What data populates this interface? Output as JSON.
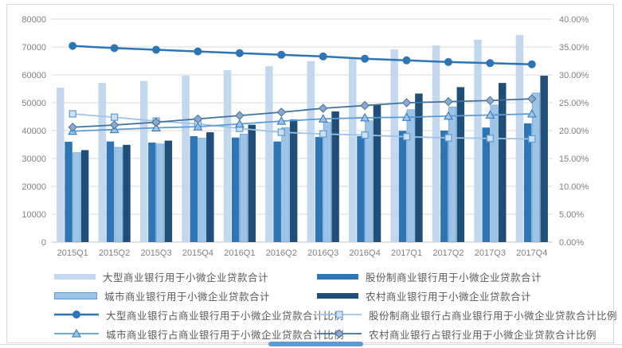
{
  "chart_data": {
    "type": "bar+line combo",
    "title": "",
    "xlabel": "",
    "ylabel_left": "",
    "ylabel_right": "",
    "grid": true,
    "legend_position": "bottom-two-columns",
    "categories": [
      "2015Q1",
      "2015Q2",
      "2015Q3",
      "2015Q4",
      "2016Q1",
      "2016Q2",
      "2016Q3",
      "2016Q4",
      "2017Q1",
      "2017Q2",
      "2017Q3",
      "2017Q4"
    ],
    "left_axis": {
      "min": 0,
      "max": 80000,
      "step": 10000,
      "tick_labels": [
        "0",
        "10000",
        "20000",
        "30000",
        "40000",
        "50000",
        "60000",
        "70000",
        "80000"
      ]
    },
    "right_axis": {
      "min": 0,
      "max": 40,
      "step": 5,
      "tick_labels": [
        "0.00%",
        "5.00%",
        "10.00%",
        "15.00%",
        "20.00%",
        "25.00%",
        "30.00%",
        "35.00%",
        "40.00%"
      ]
    },
    "bar_series": [
      {
        "name": "大型商业银行用于小微企业贷款合计",
        "color": "#c3d8ee",
        "axis": "left",
        "values": [
          55400,
          57100,
          57800,
          59700,
          61700,
          63100,
          64900,
          66300,
          69100,
          70600,
          72600,
          74300
        ]
      },
      {
        "name": "股份制商业银行用于小微企业贷款合计",
        "color": "#2e75b6",
        "axis": "left",
        "values": [
          36000,
          36100,
          35700,
          38000,
          37500,
          36100,
          37700,
          38000,
          39900,
          40000,
          41100,
          42600
        ]
      },
      {
        "name": "城市商业银行用于小微企业贷款合计",
        "color": "#9dc3e6",
        "border": "#5b9bd5",
        "axis": "left",
        "values": [
          32100,
          34000,
          35200,
          37300,
          38800,
          41100,
          43000,
          43500,
          47500,
          48500,
          49200,
          53500
        ]
      },
      {
        "name": "农村商业银行用于小微企业贷款合计",
        "color": "#1f4e79",
        "axis": "left",
        "values": [
          33000,
          34900,
          36400,
          39400,
          42100,
          44000,
          46900,
          49200,
          53300,
          55600,
          57100,
          59700
        ]
      }
    ],
    "line_series": [
      {
        "name": "大型商业银行占商业银行用于小微企业贷款合计比例",
        "marker": "circle",
        "color": "#2e75b6",
        "marker_fill": "#2e75b6",
        "marker_stroke": "#2e75b6",
        "width": 2.5,
        "axis": "right",
        "values": [
          35.2,
          34.8,
          34.5,
          34.2,
          33.9,
          33.6,
          33.3,
          32.9,
          32.6,
          32.3,
          32.1,
          31.9
        ]
      },
      {
        "name": "股份制商业银行占商业银行用于小微企业贷款合计比例",
        "marker": "square",
        "color": "#9dc3e6",
        "marker_fill": "#cfe0f1",
        "marker_stroke": "#5b9bd5",
        "width": 1.75,
        "axis": "right",
        "values": [
          23.0,
          22.4,
          21.7,
          21.2,
          20.4,
          19.7,
          19.4,
          19.2,
          18.9,
          18.7,
          18.6,
          18.5
        ]
      },
      {
        "name": "城市商业银行占商业银行用于小微企业贷款合计比例",
        "marker": "triangle",
        "color": "#5b9bd5",
        "marker_fill": "#9dc3e6",
        "marker_stroke": "#2e75b6",
        "width": 1.75,
        "axis": "right",
        "values": [
          19.9,
          20.2,
          20.5,
          20.7,
          21.2,
          21.7,
          22.1,
          22.3,
          22.4,
          22.6,
          22.8,
          23.0
        ]
      },
      {
        "name": "农村商业银行占银行业用于小微企业贷款合计比例",
        "marker": "diamond",
        "color": "#41719c",
        "marker_fill": "#8eaacb",
        "marker_stroke": "#41719c",
        "width": 1.75,
        "axis": "right",
        "values": [
          20.6,
          21.0,
          21.5,
          22.1,
          22.7,
          23.3,
          24.0,
          24.5,
          25.0,
          25.2,
          25.4,
          25.7
        ]
      }
    ]
  },
  "footer_scrollbar": {
    "thumb_color": "#5b9bd5",
    "track_color": "#d9d9d9"
  },
  "colors": {
    "gridline": "#d9d9d9",
    "axis_line": "#bfbfbf",
    "axis_text": "#808080",
    "legend_text": "#595959",
    "panel_border": "#d9d9d9"
  }
}
